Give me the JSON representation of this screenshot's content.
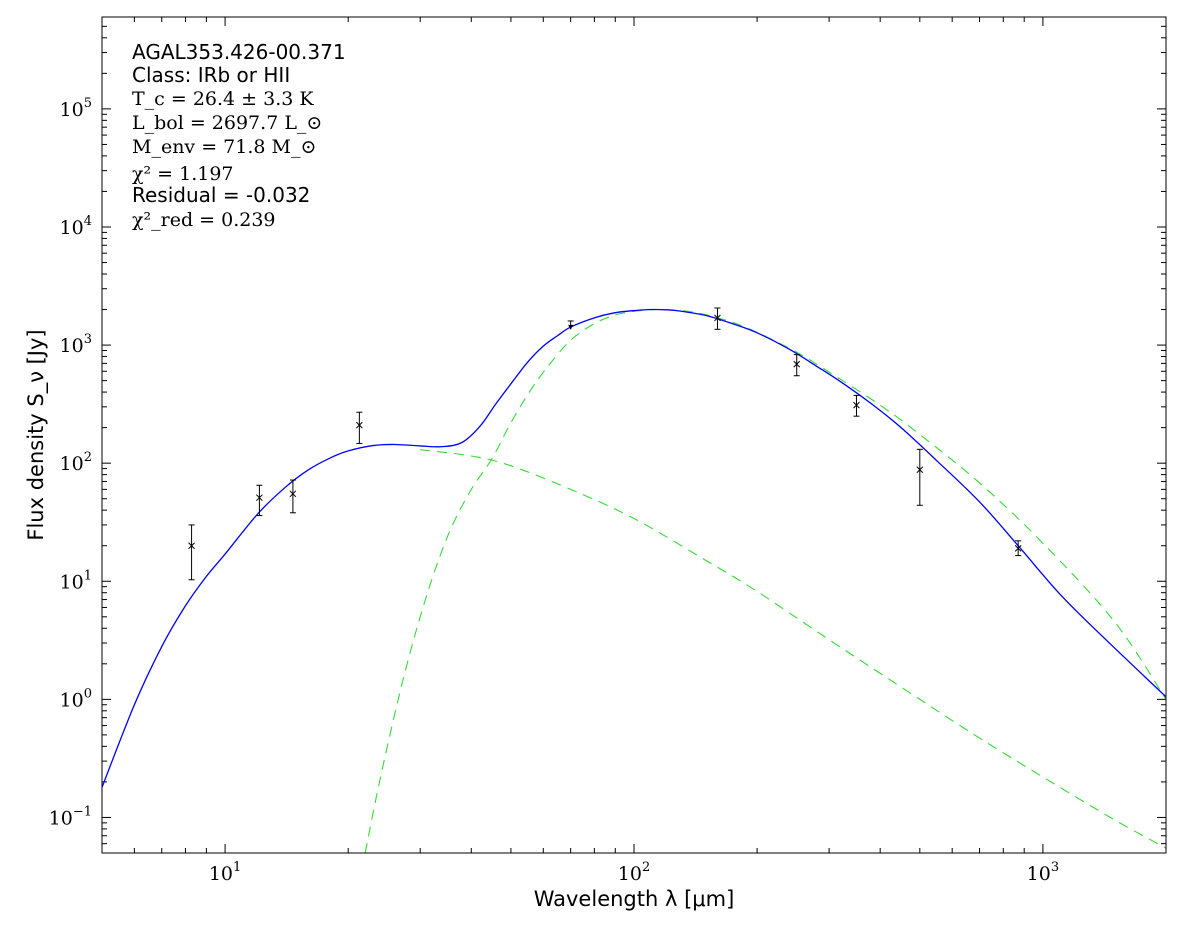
{
  "chart_data": {
    "type": "line",
    "x_scale": "log",
    "y_scale": "log",
    "xlim": [
      5,
      2000
    ],
    "ylim": [
      0.05,
      600000
    ],
    "xlabel": "Wavelength λ [μm]",
    "ylabel": "Flux density S_ν [Jy]",
    "x_ticks": [
      {
        "value": 10,
        "base": "10",
        "exp": "1"
      },
      {
        "value": 100,
        "base": "10",
        "exp": "2"
      },
      {
        "value": 1000,
        "base": "10",
        "exp": "3"
      }
    ],
    "y_ticks": [
      {
        "value": 0.1,
        "base": "10",
        "exp": "−1"
      },
      {
        "value": 1,
        "base": "10",
        "exp": "0"
      },
      {
        "value": 10,
        "base": "10",
        "exp": "1"
      },
      {
        "value": 100,
        "base": "10",
        "exp": "2"
      },
      {
        "value": 1000,
        "base": "10",
        "exp": "3"
      },
      {
        "value": 10000,
        "base": "10",
        "exp": "4"
      },
      {
        "value": 100000,
        "base": "10",
        "exp": "5"
      }
    ],
    "annotations": {
      "source": "AGAL353.426-00.371",
      "class_line": "Class: IRb or HII",
      "tc_line": "T_c = 26.4 ± 3.3 K",
      "lbol_line": "L_bol = 2697.7 L_⊙",
      "menv_line": "M_env = 71.8 M_⊙",
      "chi2_line": "χ² = 1.197",
      "residual_line": "Residual = -0.032",
      "chi2red_line": "χ²_red = 0.239"
    },
    "series": [
      {
        "kind": "total_fit",
        "color": "#0000ff",
        "style": "solid",
        "x": [
          5,
          6,
          7,
          8,
          9,
          10,
          12,
          14,
          16,
          18,
          20,
          23,
          26,
          30,
          34,
          38,
          42,
          46,
          50,
          55,
          60,
          65,
          70,
          80,
          90,
          100,
          110,
          120,
          130,
          150,
          170,
          200,
          240,
          280,
          320,
          380,
          450,
          550,
          700,
          870,
          1100,
          1400,
          2000
        ],
        "y": [
          0.18,
          0.9,
          2.8,
          6.2,
          11,
          17,
          37,
          62,
          88,
          110,
          127,
          141,
          144,
          140,
          138,
          150,
          205,
          320,
          470,
          720,
          980,
          1200,
          1420,
          1700,
          1880,
          1960,
          2000,
          1990,
          1940,
          1780,
          1560,
          1270,
          920,
          660,
          490,
          320,
          200,
          105,
          47,
          20,
          7.8,
          3.4,
          1.05
        ]
      },
      {
        "kind": "cold_envelope_component",
        "color": "#33dd33",
        "style": "dashed",
        "x": [
          22,
          24,
          27,
          30,
          33,
          36,
          40,
          45,
          50,
          56,
          62,
          70,
          80,
          90,
          100,
          110,
          120,
          140,
          170,
          200,
          250,
          300,
          400,
          500,
          700,
          1000,
          1500,
          2000
        ],
        "y": [
          0.05,
          0.22,
          1.3,
          5,
          14,
          30,
          60,
          110,
          220,
          420,
          680,
          1100,
          1520,
          1800,
          1930,
          1990,
          2000,
          1900,
          1600,
          1280,
          870,
          590,
          310,
          175,
          68,
          21,
          4.5,
          1.0
        ]
      },
      {
        "kind": "hot_component",
        "color": "#33dd33",
        "style": "dashed",
        "x": [
          30,
          40,
          50,
          70,
          100,
          150,
          200,
          300,
          500,
          700,
          1000,
          1500,
          2000
        ],
        "y": [
          130,
          115,
          95,
          60,
          34,
          15,
          8.2,
          3.2,
          1.0,
          0.47,
          0.22,
          0.095,
          0.055
        ]
      }
    ],
    "points": [
      {
        "x": 8.28,
        "y": 20,
        "err_lo": 10.3,
        "err_hi": 30
      },
      {
        "x": 12.13,
        "y": 51,
        "err_lo": 36,
        "err_hi": 65
      },
      {
        "x": 14.65,
        "y": 55,
        "err_lo": 38,
        "err_hi": 72
      },
      {
        "x": 21.3,
        "y": 210,
        "err_lo": 147,
        "err_hi": 270
      },
      {
        "x": 70,
        "y": 1600,
        "upper_limit": true,
        "arrow_to": 1370
      },
      {
        "x": 160,
        "y": 1700,
        "err_lo": 1360,
        "err_hi": 2060
      },
      {
        "x": 250,
        "y": 690,
        "err_lo": 550,
        "err_hi": 830
      },
      {
        "x": 350,
        "y": 310,
        "err_lo": 250,
        "err_hi": 375
      },
      {
        "x": 500,
        "y": 88,
        "err_lo": 44,
        "err_hi": 131
      },
      {
        "x": 870,
        "y": 19,
        "err_lo": 16.5,
        "err_hi": 22
      }
    ]
  }
}
